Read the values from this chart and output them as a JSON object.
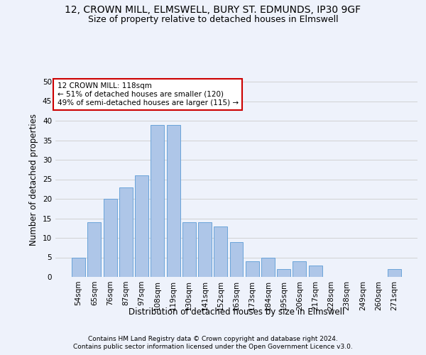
{
  "title1": "12, CROWN MILL, ELMSWELL, BURY ST. EDMUNDS, IP30 9GF",
  "title2": "Size of property relative to detached houses in Elmswell",
  "xlabel": "Distribution of detached houses by size in Elmswell",
  "ylabel": "Number of detached properties",
  "footnote1": "Contains HM Land Registry data © Crown copyright and database right 2024.",
  "footnote2": "Contains public sector information licensed under the Open Government Licence v3.0.",
  "annotation_line1": "12 CROWN MILL: 118sqm",
  "annotation_line2": "← 51% of detached houses are smaller (120)",
  "annotation_line3": "49% of semi-detached houses are larger (115) →",
  "bin_labels": [
    "54sqm",
    "65sqm",
    "76sqm",
    "87sqm",
    "97sqm",
    "108sqm",
    "119sqm",
    "130sqm",
    "141sqm",
    "152sqm",
    "163sqm",
    "173sqm",
    "184sqm",
    "195sqm",
    "206sqm",
    "217sqm",
    "228sqm",
    "238sqm",
    "249sqm",
    "260sqm",
    "271sqm"
  ],
  "bar_heights": [
    5,
    14,
    20,
    23,
    26,
    39,
    39,
    14,
    14,
    13,
    9,
    4,
    5,
    2,
    4,
    3,
    0,
    0,
    0,
    0,
    2
  ],
  "bar_color": "#aec6e8",
  "bar_edge_color": "#5b9bd5",
  "bg_color": "#eef2fb",
  "annotation_box_color": "#ffffff",
  "annotation_box_edge_color": "#cc0000",
  "ylim": [
    0,
    50
  ],
  "yticks": [
    0,
    5,
    10,
    15,
    20,
    25,
    30,
    35,
    40,
    45,
    50
  ],
  "grid_color": "#cccccc",
  "title1_fontsize": 10,
  "title2_fontsize": 9,
  "xlabel_fontsize": 8.5,
  "ylabel_fontsize": 8.5,
  "tick_fontsize": 7.5,
  "annotation_fontsize": 7.5,
  "footnote_fontsize": 6.5
}
